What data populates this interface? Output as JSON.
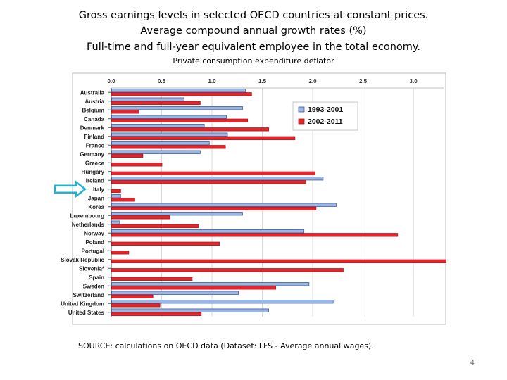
{
  "slide": {
    "title_line1": "Gross earnings levels in selected OECD countries at constant prices.",
    "title_line2": "Average compound annual growth rates (%)",
    "title_line3": "Full-time and full-year equivalent employee in the total economy.",
    "subtitle": "Private consumption expenditure deflator",
    "source": "SOURCE: calculations on OECD data (Dataset: LFS - Average annual wages).",
    "page_number": "4",
    "highlighted_category": "Italy"
  },
  "chart_data": {
    "type": "bar",
    "orientation": "horizontal",
    "categories": [
      "Australia",
      "Austria",
      "Belgium",
      "Canada",
      "Denmark",
      "Finland",
      "France",
      "Germany",
      "Greece",
      "Hungary",
      "Ireland",
      "Italy",
      "Japan",
      "Korea",
      "Luxembourg",
      "Netherlands",
      "Norway",
      "Poland",
      "Portugal",
      "Slovak Republic",
      "Slovenia*",
      "Spain",
      "Sweden",
      "Switzerland",
      "United Kingdom",
      "United States"
    ],
    "series": [
      {
        "name": "1993-2001",
        "color": "#9db6e0",
        "border": "#3a5fa8",
        "values": [
          1.33,
          0.72,
          1.3,
          1.14,
          0.92,
          1.15,
          0.97,
          0.88,
          0.0,
          0.0,
          2.1,
          0.0,
          0.09,
          2.23,
          1.3,
          0.08,
          1.91,
          0.0,
          0.0,
          0.0,
          0.0,
          0.0,
          1.96,
          1.26,
          2.2,
          1.56
        ]
      },
      {
        "name": "2002-2011",
        "color": "#e3262b",
        "border": "#b0161b",
        "values": [
          1.39,
          0.88,
          0.27,
          1.35,
          1.56,
          1.82,
          1.13,
          0.31,
          0.5,
          2.02,
          1.93,
          0.09,
          0.23,
          2.03,
          0.58,
          0.86,
          2.84,
          1.07,
          0.17,
          3.32,
          2.3,
          0.8,
          1.63,
          0.41,
          0.48,
          0.89
        ]
      }
    ],
    "x_ticks": [
      "0.0",
      "0.5",
      "1.0",
      "1.5",
      "2.0",
      "2.5",
      "3.0"
    ],
    "xlim": [
      0,
      3.3
    ],
    "legend_position": "top-right",
    "grid": true
  }
}
